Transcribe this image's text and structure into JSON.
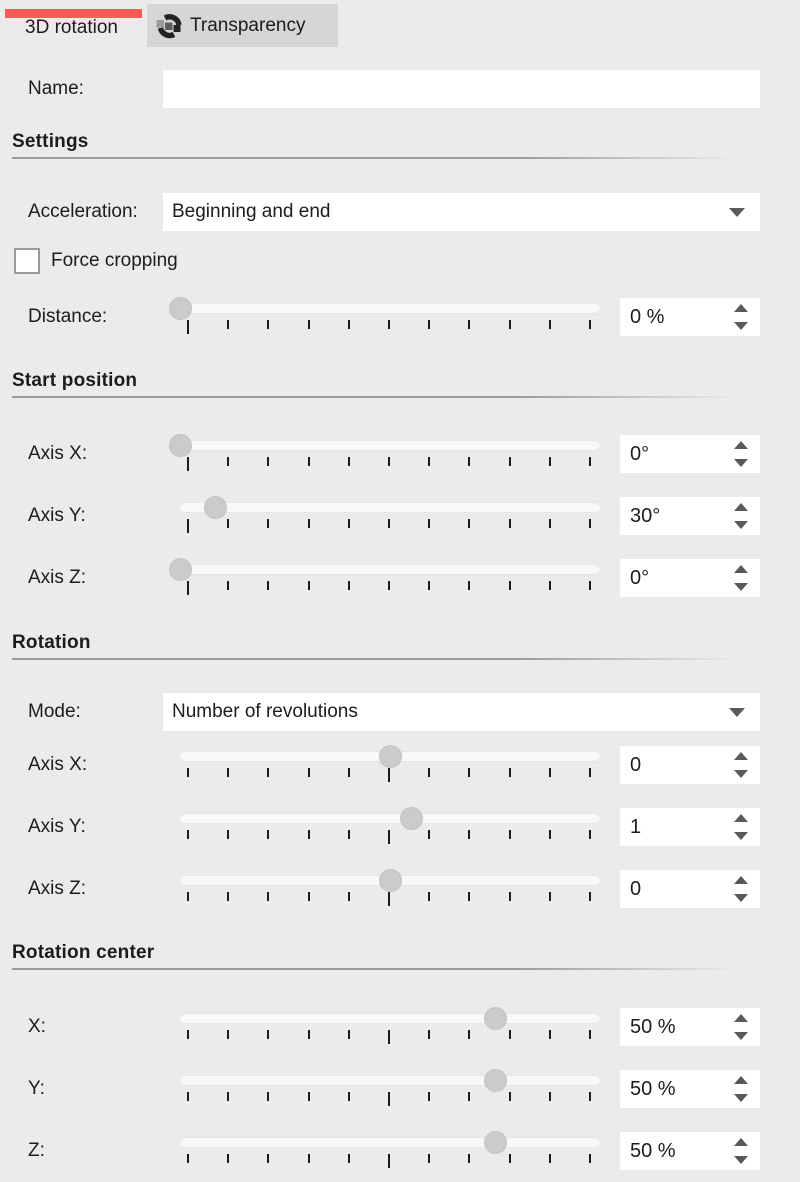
{
  "window": {
    "background_color": "#ebebeb",
    "accent_color": "#fb5a55",
    "inactive_tab_color": "#d6d6d6"
  },
  "tabs": {
    "rotation3d": {
      "label": "3D rotation",
      "active": true
    },
    "transparency": {
      "label": "Transparency",
      "icon": "transparency-icon",
      "active": false
    }
  },
  "fields": {
    "name": {
      "label": "Name:",
      "value": "",
      "placeholder": ""
    }
  },
  "settings": {
    "heading": "Settings",
    "acceleration": {
      "label": "Acceleration:",
      "value": "Beginning and end"
    },
    "force_cropping": {
      "label": "Force cropping",
      "checked": false
    },
    "distance": {
      "label": "Distance:",
      "value": "0 %",
      "slider_percent": 0
    }
  },
  "start_position": {
    "heading": "Start position",
    "axis_x": {
      "label": "Axis X:",
      "value": "0°",
      "slider_percent": 0
    },
    "axis_y": {
      "label": "Axis Y:",
      "value": "30°",
      "slider_percent": 8.3
    },
    "axis_z": {
      "label": "Axis Z:",
      "value": "0°",
      "slider_percent": 0
    }
  },
  "rotation": {
    "heading": "Rotation",
    "mode": {
      "label": "Mode:",
      "value": "Number of revolutions"
    },
    "axis_x": {
      "label": "Axis X:",
      "value": "0",
      "slider_percent": 50
    },
    "axis_y": {
      "label": "Axis Y:",
      "value": "1",
      "slider_percent": 55
    },
    "axis_z": {
      "label": "Axis Z:",
      "value": "0",
      "slider_percent": 50
    }
  },
  "rotation_center": {
    "heading": "Rotation center",
    "x": {
      "label": "X:",
      "value": "50 %",
      "slider_percent": 75
    },
    "y": {
      "label": "Y:",
      "value": "50 %",
      "slider_percent": 75
    },
    "z": {
      "label": "Z:",
      "value": "50 %",
      "slider_percent": 75
    }
  }
}
